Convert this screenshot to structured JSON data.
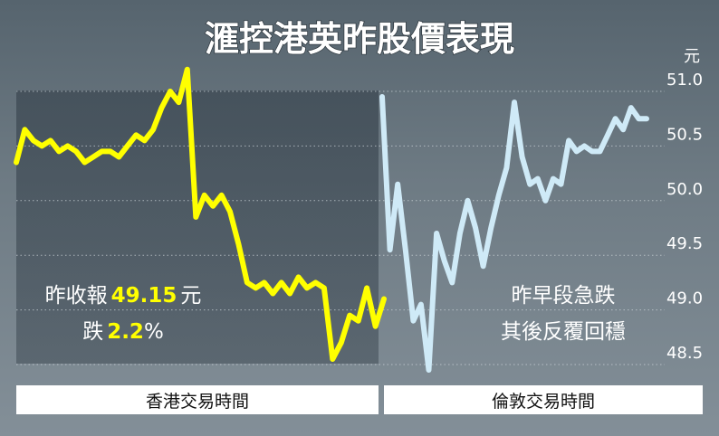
{
  "chart_data": {
    "type": "line",
    "title": "滙控港英昨股價表現",
    "y_unit": "元",
    "ylim": [
      48.5,
      51.0
    ],
    "y_ticks": [
      "51.0",
      "50.5",
      "50.0",
      "49.5",
      "49.0",
      "48.5"
    ],
    "grid": "horizontal dotted",
    "series": [
      {
        "session": "香港交易時間",
        "color": "#ffff00",
        "values": [
          50.35,
          50.65,
          50.55,
          50.5,
          50.55,
          50.45,
          50.5,
          50.45,
          50.35,
          50.4,
          50.45,
          50.45,
          50.4,
          50.5,
          50.6,
          50.55,
          50.65,
          50.85,
          51.0,
          50.9,
          51.2,
          49.85,
          50.05,
          49.95,
          50.05,
          49.9,
          49.6,
          49.25,
          49.2,
          49.25,
          49.15,
          49.25,
          49.15,
          49.3,
          49.2,
          49.25,
          49.2,
          48.55,
          48.7,
          48.95,
          48.9,
          49.2,
          48.85,
          49.1
        ]
      },
      {
        "session": "倫敦交易時間",
        "color": "#cfeaf7",
        "values": [
          50.95,
          49.55,
          50.15,
          49.55,
          48.9,
          49.05,
          48.45,
          49.7,
          49.45,
          49.25,
          49.7,
          50.0,
          49.75,
          49.4,
          49.75,
          50.05,
          50.3,
          50.9,
          50.4,
          50.15,
          50.2,
          50.0,
          50.2,
          50.15,
          50.55,
          50.45,
          50.5,
          50.45,
          50.45,
          50.6,
          50.75,
          50.65,
          50.85,
          50.75,
          50.75
        ]
      }
    ],
    "x_labels": [
      "香港交易時間",
      "倫敦交易時間"
    ],
    "annotations": {
      "hk_line1_prefix": "昨收報",
      "hk_line1_value": "49.15",
      "hk_line1_suffix": "元",
      "hk_line2_prefix": "跌",
      "hk_line2_value": "2.2",
      "hk_line2_suffix": "%",
      "london_line1": "昨早段急跌",
      "london_line2": "其後反覆回穩"
    }
  },
  "colors": {
    "hk_line": "#ffff00",
    "london_line": "#cfeaf7",
    "highlight_text": "#ffff00",
    "label_bar": "#ffffff"
  }
}
